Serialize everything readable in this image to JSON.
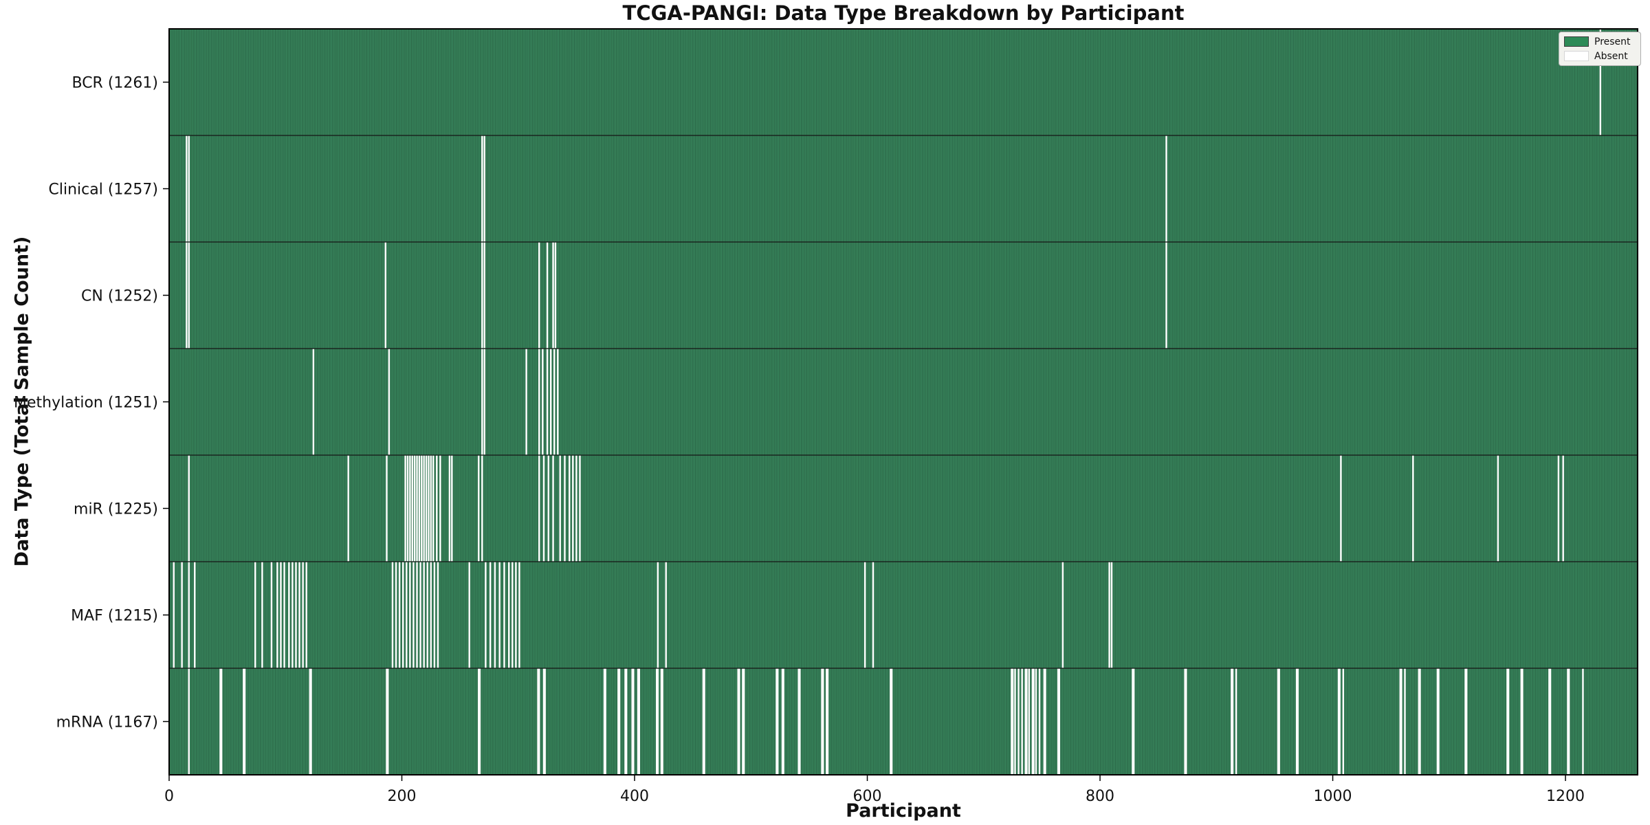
{
  "chart_data": {
    "type": "heatmap",
    "title": "TCGA-PANGI: Data Type Breakdown by Participant",
    "xlabel": "Participant",
    "ylabel": "Data Type (Total Sample Count)",
    "x_ticks": [
      0,
      200,
      400,
      600,
      800,
      1000,
      1200
    ],
    "xlim": [
      0,
      1262
    ],
    "n_participants": 1262,
    "grid": false,
    "legend_position": "upper right",
    "value_encoding": "each column is one participant; green = data present, white = data absent",
    "legend": [
      {
        "label": "Present",
        "color": "#2E8B57"
      },
      {
        "label": "Absent",
        "color": "#FFFFFF"
      }
    ],
    "colors": {
      "bar_fill": "#3A8A5F",
      "bar_edge": "#25593E",
      "absent": "#FFFFFF",
      "row_divider": "#151515",
      "plot_border": "#000000",
      "text": "#111111"
    },
    "rows": [
      {
        "name": "BCR",
        "total": 1261,
        "label": "BCR (1261)",
        "absent_participants": [
          1230
        ]
      },
      {
        "name": "Clinical",
        "total": 1257,
        "label": "Clinical (1257)",
        "absent_participants": [
          15,
          17,
          269,
          271,
          857
        ]
      },
      {
        "name": "CN",
        "total": 1252,
        "label": "CN (1252)",
        "absent_participants": [
          15,
          17,
          186,
          269,
          271,
          318,
          325,
          330,
          332,
          857
        ]
      },
      {
        "name": "Methylation",
        "total": 1251,
        "label": "Methylation (1251)",
        "absent_participants": [
          124,
          189,
          269,
          271,
          307,
          318,
          321,
          325,
          328,
          331,
          334
        ]
      },
      {
        "name": "miR",
        "total": 1225,
        "label": "miR (1225)",
        "absent_participants": [
          17,
          154,
          187,
          203,
          205,
          207,
          209,
          211,
          213,
          215,
          217,
          219,
          221,
          223,
          225,
          227,
          230,
          233,
          241,
          243,
          266,
          269,
          318,
          322,
          326,
          330,
          336,
          340,
          344,
          347,
          350,
          353,
          1007,
          1069,
          1142,
          1194,
          1198
        ]
      },
      {
        "name": "MAF",
        "total": 1215,
        "label": "MAF (1215)",
        "absent_participants": [
          4,
          11,
          17,
          22,
          74,
          80,
          88,
          93,
          96,
          99,
          103,
          106,
          109,
          112,
          115,
          118,
          192,
          195,
          198,
          201,
          204,
          207,
          210,
          213,
          216,
          219,
          222,
          225,
          228,
          231,
          258,
          272,
          276,
          280,
          284,
          288,
          292,
          295,
          298,
          301,
          420,
          427,
          598,
          605,
          768,
          808,
          810
        ]
      },
      {
        "name": "mRNA",
        "total": 1167,
        "label": "mRNA (1167)",
        "absent_participants": [
          17,
          44,
          45,
          64,
          65,
          121,
          122,
          187,
          188,
          266,
          267,
          317,
          318,
          322,
          323,
          374,
          375,
          386,
          387,
          392,
          393,
          398,
          399,
          403,
          404,
          419,
          420,
          423,
          424,
          459,
          460,
          489,
          490,
          493,
          494,
          522,
          523,
          527,
          528,
          541,
          542,
          561,
          562,
          565,
          566,
          620,
          621,
          724,
          725,
          727,
          730,
          733,
          736,
          737,
          739,
          742,
          743,
          745,
          748,
          752,
          753,
          764,
          765,
          828,
          829,
          873,
          874,
          913,
          914,
          917,
          953,
          954,
          969,
          970,
          1005,
          1006,
          1009,
          1058,
          1059,
          1062,
          1074,
          1075,
          1090,
          1091,
          1114,
          1115,
          1150,
          1151,
          1162,
          1163,
          1186,
          1187,
          1202,
          1203,
          1215
        ]
      }
    ]
  }
}
